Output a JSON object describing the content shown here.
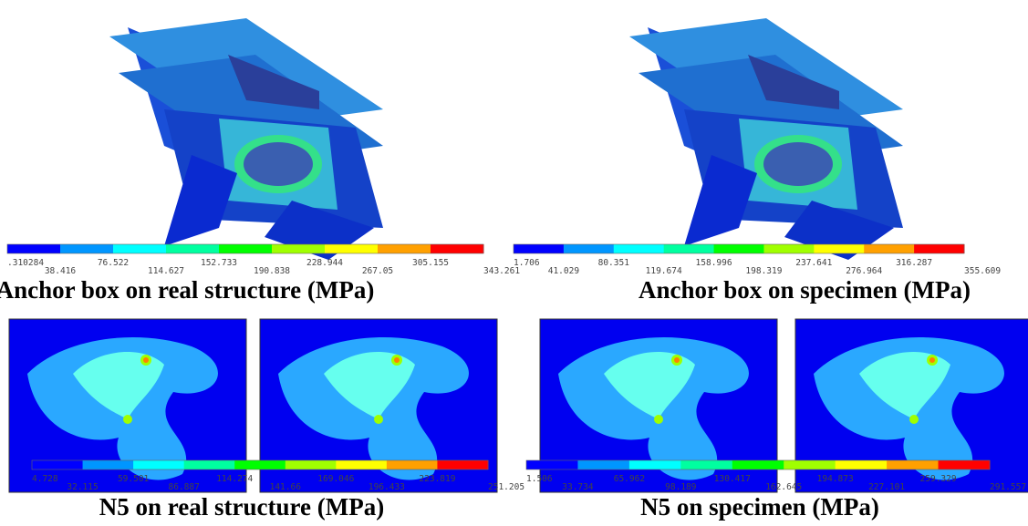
{
  "figure": {
    "palette": [
      "#0000ff",
      "#0096ff",
      "#00ffff",
      "#00ffa0",
      "#00ff00",
      "#a0ff00",
      "#ffff00",
      "#ffa000",
      "#ff0000"
    ],
    "panels": [
      {
        "caption": "Anchor box on real structure (MPa)",
        "scale": [
          ".310284",
          "38.416",
          "76.522",
          "114.627",
          "152.733",
          "190.838",
          "228.944",
          "267.05",
          "305.155",
          "343.261"
        ]
      },
      {
        "caption": "Anchor box on specimen (MPa)",
        "scale": [
          "1.706",
          "41.029",
          "80.351",
          "119.674",
          "158.996",
          "198.319",
          "237.641",
          "276.964",
          "316.287",
          "355.609"
        ]
      },
      {
        "caption": "N5 on real structure (MPa)",
        "scale": [
          "4.728",
          "32.115",
          "59.501",
          "86.887",
          "114.274",
          "141.66",
          "169.046",
          "196.433",
          "223.819",
          "251.205"
        ]
      },
      {
        "caption": "N5 on specimen (MPa)",
        "scale": [
          "1.506",
          "33.734",
          "65.962",
          "98.189",
          "130.417",
          "162.645",
          "194.873",
          "227.101",
          "259.329",
          "291.557"
        ]
      }
    ]
  }
}
